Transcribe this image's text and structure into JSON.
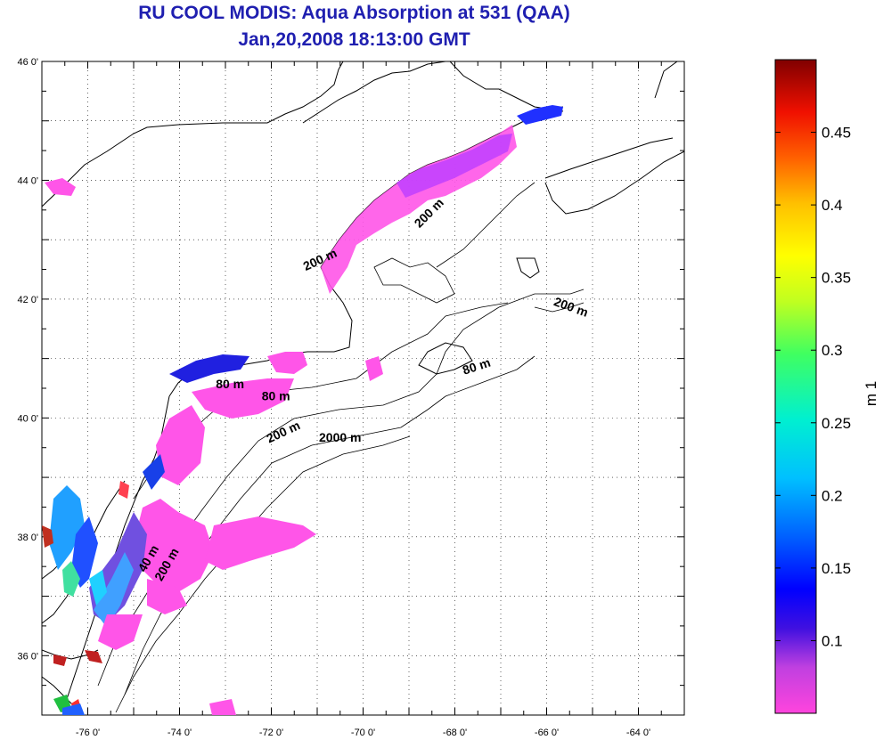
{
  "title": "RU COOL MODIS: Aqua Absorption at 531 (QAA)",
  "subtitle": "Jan,20,2008 18:13:00 GMT",
  "map": {
    "lon_range": [
      -77,
      -63
    ],
    "lat_range": [
      35,
      46
    ],
    "lon_tick_labels": [
      {
        "lon": -76,
        "label": "-76 0'"
      },
      {
        "lon": -74,
        "label": "-74 0'"
      },
      {
        "lon": -72,
        "label": "-72 0'"
      },
      {
        "lon": -70,
        "label": "-70 0'"
      },
      {
        "lon": -68,
        "label": "-68 0'"
      },
      {
        "lon": -66,
        "label": "-66 0'"
      },
      {
        "lon": -64,
        "label": "-64 0'"
      }
    ],
    "lat_tick_labels": [
      {
        "lat": 46,
        "label": "46 0'"
      },
      {
        "lat": 44,
        "label": "44 0'"
      },
      {
        "lat": 42,
        "label": "42 0'"
      },
      {
        "lat": 40,
        "label": "40 0'"
      },
      {
        "lat": 38,
        "label": "38 0'"
      },
      {
        "lat": 36,
        "label": "36 0'"
      }
    ],
    "grid": "dotted",
    "contour_labels": [
      {
        "text": "200 m",
        "lon": -68.5,
        "lat": 43.4,
        "angle": -45
      },
      {
        "text": "200 m",
        "lon": -70.9,
        "lat": 42.6,
        "angle": -25
      },
      {
        "text": "200 m",
        "lon": -65.5,
        "lat": 41.8,
        "angle": 20
      },
      {
        "text": "80 m",
        "lon": -67.5,
        "lat": 40.8,
        "angle": -18
      },
      {
        "text": "80 m",
        "lon": -72.9,
        "lat": 40.5,
        "angle": 0
      },
      {
        "text": "80 m",
        "lon": -71.9,
        "lat": 40.3,
        "angle": 0
      },
      {
        "text": "200 m",
        "lon": -71.7,
        "lat": 39.7,
        "angle": -25
      },
      {
        "text": "2000 m",
        "lon": -70.5,
        "lat": 39.6,
        "angle": 0
      },
      {
        "text": "40 m",
        "lon": -74.6,
        "lat": 37.6,
        "angle": -60
      },
      {
        "text": "200 m",
        "lon": -74.2,
        "lat": 37.5,
        "angle": -60
      }
    ]
  },
  "colorbar": {
    "min": 0.05,
    "max": 0.5,
    "ticks": [
      "0.45",
      "0.4",
      "0.35",
      "0.3",
      "0.25",
      "0.2",
      "0.15",
      "0.1"
    ],
    "tick_values": [
      0.45,
      0.4,
      0.35,
      0.3,
      0.25,
      0.2,
      0.15,
      0.1
    ],
    "label": "m 1"
  }
}
